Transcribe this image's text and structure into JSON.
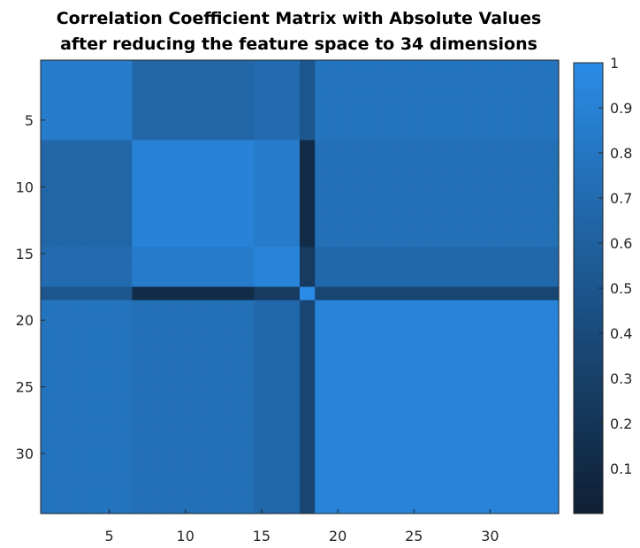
{
  "chart_data": {
    "type": "heatmap",
    "title": "Correlation Coefficient Matrix with Absolute Values",
    "subtitle": "after reducing the feature space to 34 dimensions",
    "n": 34,
    "groups": [
      {
        "start": 1,
        "end": 6
      },
      {
        "start": 7,
        "end": 14
      },
      {
        "start": 15,
        "end": 17
      },
      {
        "start": 18,
        "end": 18
      },
      {
        "start": 19,
        "end": 34
      }
    ],
    "block_values": [
      [
        0.85,
        0.65,
        0.7,
        0.5,
        0.77
      ],
      [
        0.65,
        0.92,
        0.85,
        0.12,
        0.74
      ],
      [
        0.7,
        0.85,
        0.93,
        0.25,
        0.67
      ],
      [
        0.5,
        0.12,
        0.25,
        1.0,
        0.35
      ],
      [
        0.77,
        0.74,
        0.67,
        0.35,
        0.93
      ]
    ],
    "x_ticks": [
      5,
      10,
      15,
      20,
      25,
      30
    ],
    "y_ticks": [
      5,
      10,
      15,
      20,
      25,
      30
    ],
    "colorbar": {
      "min": 0,
      "max": 1,
      "ticks": [
        "0.1",
        "0.2",
        "0.3",
        "0.4",
        "0.5",
        "0.6",
        "0.7",
        "0.8",
        "0.9",
        "1"
      ],
      "colors": [
        "#0f1f33",
        "#2a8ce6"
      ]
    },
    "grid": false,
    "legend": "colorbar-right"
  }
}
